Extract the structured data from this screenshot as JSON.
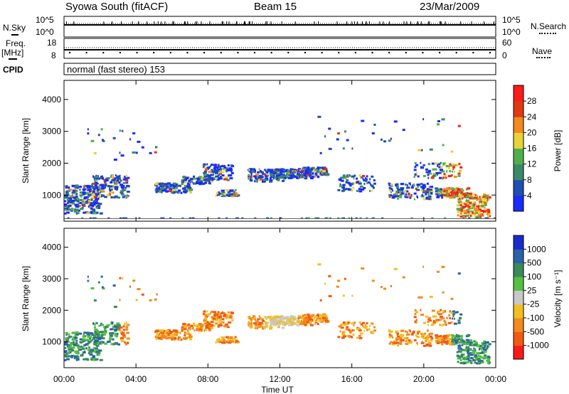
{
  "header": {
    "title": "Syowa South (fitACF)",
    "beam": "Beam 15",
    "date": "23/Mar/2009"
  },
  "panels": {
    "sky": {
      "left_label": "N.Sky",
      "right_label": "N.Search",
      "left_ticks": [
        "10^5",
        "10^0"
      ],
      "right_ticks": [
        "10^5",
        "10^0"
      ]
    },
    "freq": {
      "left_label_top": "Freq.",
      "left_label_bottom": "[MHz]",
      "right_label": "Nave",
      "left_ticks": [
        "18",
        "8"
      ],
      "right_ticks": [
        "60",
        "0"
      ]
    },
    "cpid": {
      "label": "CPID",
      "text": "normal (fast stereo) 153"
    }
  },
  "chart_data": [
    {
      "type": "heatmap",
      "title": "",
      "ylabel": "Slant Range [km]",
      "xlabel": "",
      "ylim": [
        180,
        4600
      ],
      "yticks": [
        "1000",
        "2000",
        "3000",
        "4000"
      ],
      "colorbar_label": "Power [dB]",
      "colorbar_ticks": [
        "4",
        "8",
        "12",
        "16",
        "20",
        "24",
        "28"
      ],
      "colors": [
        "#1a2bff",
        "#1f4fb0",
        "#3a8a6a",
        "#4fb04a",
        "#e8d23a",
        "#f28a1e",
        "#e03a12",
        "#ff1a1a"
      ]
    },
    {
      "type": "heatmap",
      "title": "",
      "ylabel": "Slant Range [km]",
      "xlabel": "Time UT",
      "xticks": [
        "00:00",
        "04:00",
        "08:00",
        "12:00",
        "16:00",
        "20:00",
        "00:00"
      ],
      "ylim": [
        180,
        4600
      ],
      "yticks": [
        "1000",
        "2000",
        "3000",
        "4000"
      ],
      "colorbar_label": "Velocity [m s⁻¹]",
      "colorbar_ticks": [
        "1000",
        "500",
        "100",
        "25",
        "-25",
        "-100",
        "-500",
        "-1000"
      ],
      "colors": [
        "#1a2bcc",
        "#2a62a8",
        "#3a8a5a",
        "#55c040",
        "#c8c8c8",
        "#f0c020",
        "#f28a1e",
        "#f25a12",
        "#ff1a1a"
      ]
    }
  ]
}
